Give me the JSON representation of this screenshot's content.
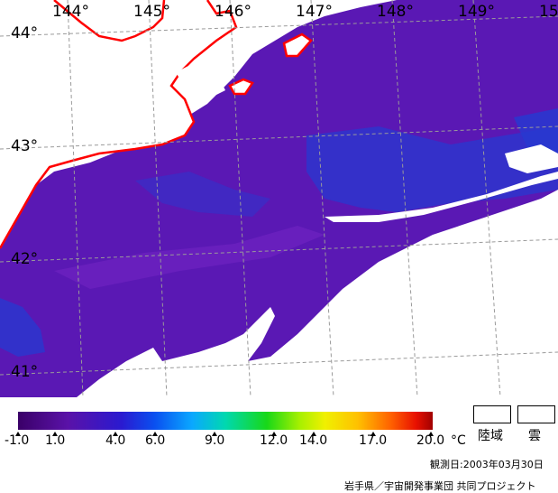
{
  "map": {
    "longitude_labels": [
      "144°",
      "145°",
      "146°",
      "147°",
      "148°",
      "149°",
      "15"
    ],
    "latitude_labels": [
      "44°",
      "43°",
      "42°",
      "41°"
    ],
    "colors": {
      "sea_base": "#5a18b4",
      "sea_dark": "#4a10a0",
      "sea_warm": "#7a28c8",
      "sea_cold": "#2838d0",
      "coastline": "#ff0000",
      "land": "#ffffff",
      "cloud": "#ffffff",
      "grid": "#9a9a9a"
    }
  },
  "colorbar": {
    "tick_labels": [
      "-1.0",
      "1.0",
      "4.0",
      "6.0",
      "9.0",
      "12.0",
      "14.0",
      "17.0",
      "20.0"
    ],
    "unit": "°C"
  },
  "legend": {
    "land_label": "陸域",
    "cloud_label": "雲"
  },
  "footer": {
    "observation_date": "観測日:2003年03月30日",
    "credit": "岩手県／宇宙開発事業団 共同プロジェクト"
  }
}
